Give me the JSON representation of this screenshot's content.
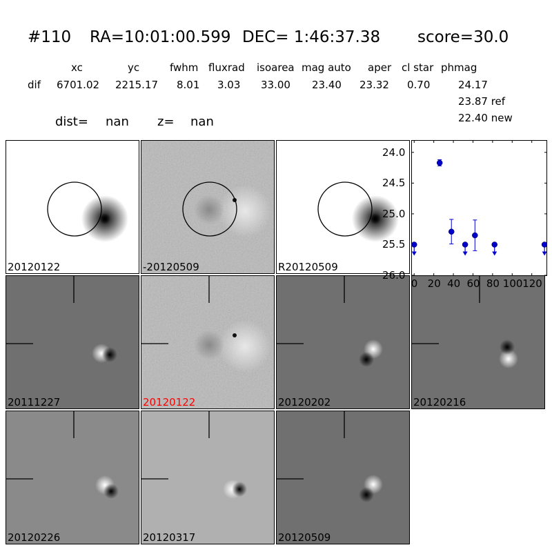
{
  "header": {
    "id": "#110",
    "ra": "RA=10:01:00.599",
    "dec": "DEC= 1:46:37.38",
    "score": "score=30.0"
  },
  "table": {
    "columns": [
      "xc",
      "yc",
      "fwhm",
      "fluxrad",
      "isoarea",
      "mag auto",
      "aper",
      "cl star",
      "phmag"
    ],
    "row_label": "dif",
    "values": [
      "6701.02",
      "2215.17",
      "8.01",
      "3.03",
      "33.00",
      "23.40",
      "23.32",
      "0.70",
      "24.17"
    ],
    "phmag_extra": [
      "23.87 ref",
      "22.40 new"
    ]
  },
  "dist_line": {
    "dist_label": "dist=",
    "dist_value": "nan",
    "z_label": "z=",
    "z_value": "nan"
  },
  "panels": [
    {
      "label": "20120122",
      "style": "template",
      "circle": true,
      "label_color": "#000000"
    },
    {
      "label": "-20120509",
      "style": "noise",
      "circle": true,
      "label_color": "#000000"
    },
    {
      "label": "R20120509",
      "style": "template",
      "circle": true,
      "label_color": "#000000"
    },
    {
      "label": "20111227",
      "style": "dipole_v",
      "crosshair": true,
      "label_color": "#000000"
    },
    {
      "label": "20120122",
      "style": "noise",
      "crosshair": true,
      "label_color": "#ff0000"
    },
    {
      "label": "20120202",
      "style": "dipole_d",
      "crosshair": true,
      "label_color": "#000000"
    },
    {
      "label": "20120216",
      "style": "dipole_d2",
      "crosshair": true,
      "label_color": "#000000"
    },
    {
      "label": "20120226",
      "style": "dipole_h",
      "crosshair": true,
      "label_color": "#000000"
    },
    {
      "label": "20120317",
      "style": "dipole_v2",
      "crosshair": true,
      "label_color": "#000000"
    },
    {
      "label": "20120509",
      "style": "dipole_d",
      "crosshair": true,
      "label_color": "#000000"
    }
  ],
  "chart_data": {
    "type": "scatter",
    "x_ticks": [
      "0",
      "20",
      "40",
      "60",
      "80",
      "100",
      "120"
    ],
    "y_ticks": [
      "24.0",
      "24.5",
      "25.0",
      "25.5",
      "26.0"
    ],
    "xlim": [
      -3,
      135
    ],
    "ylim": [
      26.0,
      23.8
    ],
    "y_inverted": true,
    "color": "#0000cc",
    "points": [
      {
        "x": 0,
        "y": 25.5,
        "upper_limit": true
      },
      {
        "x": 26,
        "y": 24.17,
        "err": 0.05
      },
      {
        "x": 38,
        "y": 25.29,
        "err": 0.2
      },
      {
        "x": 52,
        "y": 25.5,
        "upper_limit": true
      },
      {
        "x": 62,
        "y": 25.35,
        "err": 0.25
      },
      {
        "x": 82,
        "y": 25.5,
        "upper_limit": true
      },
      {
        "x": 133,
        "y": 25.5,
        "upper_limit": true
      }
    ]
  }
}
